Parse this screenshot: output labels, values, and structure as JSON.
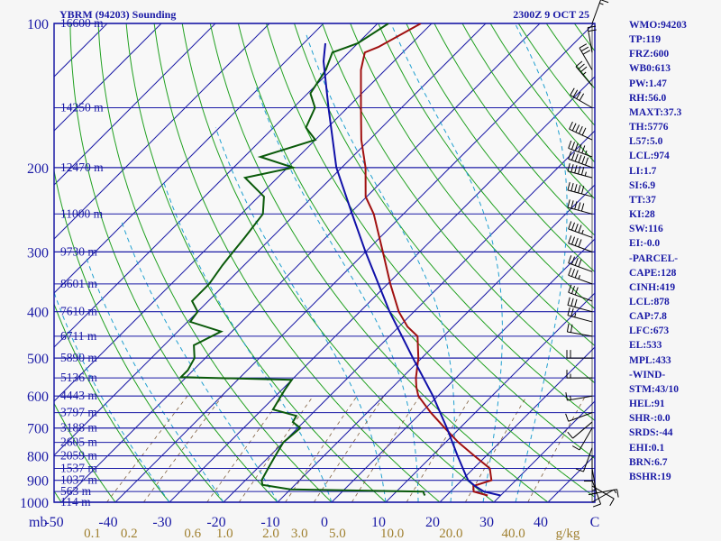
{
  "header": {
    "station": "YBRM (94203) Sounding",
    "time": "2300Z  9 OCT 25"
  },
  "indices": [
    "WMO:94203",
    "TP:119",
    "FRZ:600",
    "WB0:613",
    "PW:1.47",
    "RH:56.0",
    "MAXT:37.3",
    "TH:5776",
    "L57:5.0",
    "LCL:974",
    "LI:1.7",
    "SI:6.9",
    "TT:37",
    "KI:28",
    "SW:116",
    "EI:-0.0",
    "-PARCEL-",
    "CAPE:128",
    "CINH:419",
    "LCL:878",
    "CAP:7.8",
    "LFC:673",
    "EL:533",
    "MPL:433",
    "-WIND-",
    "STM:43/10",
    "HEL:91",
    "SHR-:0.0",
    "SRDS:-44",
    "EHI:0.1",
    "BRN:6.7",
    "BSHR:19"
  ],
  "chart_data": {
    "type": "line",
    "chart_kind": "skew-T log-P sounding",
    "y_axis": {
      "label": "mb",
      "scale": "log",
      "range": [
        1000,
        100
      ],
      "ticks": [
        100,
        200,
        300,
        400,
        500,
        600,
        700,
        800,
        900,
        1000
      ]
    },
    "x_axis": {
      "label": "",
      "range": [
        -50,
        50
      ],
      "ticks": [
        -50,
        -40,
        -30,
        -20,
        -10,
        0,
        10,
        20,
        30,
        40,
        50
      ],
      "tick_labels": [
        "-50",
        "-40",
        "-30",
        "-20",
        "-10",
        "0",
        "10",
        "20",
        "30",
        "40",
        "C"
      ],
      "unit": "C"
    },
    "mixing_ratio_ticks": {
      "values": [
        0.1,
        0.2,
        0.6,
        1.0,
        2.0,
        3.0,
        5.0,
        10.0,
        20.0,
        40.0
      ],
      "labels": [
        "0.1",
        "0.2",
        "0.6",
        "1.0",
        "2.0",
        "3.0",
        "5.0",
        "10.0",
        "20.0",
        "40.0"
      ],
      "unit": "g/kg"
    },
    "height_labels": [
      {
        "p": 100,
        "label": "16600 m"
      },
      {
        "p": 150,
        "label": "14250 m"
      },
      {
        "p": 200,
        "label": "12470 m"
      },
      {
        "p": 250,
        "label": "11000 m"
      },
      {
        "p": 300,
        "label": "9730 m"
      },
      {
        "p": 350,
        "label": "8601 m"
      },
      {
        "p": 400,
        "label": "7610 m"
      },
      {
        "p": 450,
        "label": "6711 m"
      },
      {
        "p": 500,
        "label": "5890 m"
      },
      {
        "p": 550,
        "label": "5136 m"
      },
      {
        "p": 600,
        "label": "4443 m"
      },
      {
        "p": 650,
        "label": "3797 m"
      },
      {
        "p": 700,
        "label": "3188 m"
      },
      {
        "p": 750,
        "label": "2605 m"
      },
      {
        "p": 800,
        "label": "2059 m"
      },
      {
        "p": 850,
        "label": "1537 m"
      },
      {
        "p": 900,
        "label": "1037 m"
      },
      {
        "p": 950,
        "label": "563 m"
      },
      {
        "p": 1000,
        "label": "114 m"
      }
    ],
    "series": [
      {
        "color": "#a01010",
        "points": [
          {
            "p": 968,
            "t": 27.6
          },
          {
            "p": 950,
            "t": 24.3
          },
          {
            "p": 925,
            "t": 23.2
          },
          {
            "p": 900,
            "t": 25.5
          },
          {
            "p": 850,
            "t": 23.0
          },
          {
            "p": 800,
            "t": 17.8
          },
          {
            "p": 750,
            "t": 12.4
          },
          {
            "p": 700,
            "t": 7.2
          },
          {
            "p": 650,
            "t": 1.8
          },
          {
            "p": 600,
            "t": -3.6
          },
          {
            "p": 575,
            "t": -5.6
          },
          {
            "p": 550,
            "t": -7.4
          },
          {
            "p": 500,
            "t": -10.6
          },
          {
            "p": 450,
            "t": -14.8
          },
          {
            "p": 430,
            "t": -18.4
          },
          {
            "p": 400,
            "t": -22.8
          },
          {
            "p": 350,
            "t": -29.5
          },
          {
            "p": 300,
            "t": -36.8
          },
          {
            "p": 250,
            "t": -45.5
          },
          {
            "p": 230,
            "t": -50.2
          },
          {
            "p": 200,
            "t": -55.6
          },
          {
            "p": 175,
            "t": -61.5
          },
          {
            "p": 150,
            "t": -67.5
          },
          {
            "p": 125,
            "t": -74.5
          },
          {
            "p": 115,
            "t": -77.0
          },
          {
            "p": 112,
            "t": -75.5
          },
          {
            "p": 100,
            "t": -72.0
          }
        ]
      },
      {
        "color": "#0a5a0a",
        "points": [
          {
            "p": 968,
            "t": 16.0
          },
          {
            "p": 960,
            "t": 15.5
          },
          {
            "p": 950,
            "t": 15.0
          },
          {
            "p": 940,
            "t": -10.0
          },
          {
            "p": 920,
            "t": -16.0
          },
          {
            "p": 900,
            "t": -17.0
          },
          {
            "p": 850,
            "t": -18.0
          },
          {
            "p": 800,
            "t": -19.0
          },
          {
            "p": 750,
            "t": -20.0
          },
          {
            "p": 700,
            "t": -19.5
          },
          {
            "p": 680,
            "t": -22.0
          },
          {
            "p": 660,
            "t": -22.5
          },
          {
            "p": 640,
            "t": -28.0
          },
          {
            "p": 600,
            "t": -29.0
          },
          {
            "p": 580,
            "t": -29.5
          },
          {
            "p": 555,
            "t": -30.0
          },
          {
            "p": 548,
            "t": -51.0
          },
          {
            "p": 530,
            "t": -51.0
          },
          {
            "p": 500,
            "t": -52.0
          },
          {
            "p": 470,
            "t": -54.5
          },
          {
            "p": 440,
            "t": -52.0
          },
          {
            "p": 420,
            "t": -59.5
          },
          {
            "p": 400,
            "t": -60.0
          },
          {
            "p": 380,
            "t": -63.0
          },
          {
            "p": 350,
            "t": -63.0
          },
          {
            "p": 320,
            "t": -64.0
          },
          {
            "p": 300,
            "t": -64.5
          },
          {
            "p": 280,
            "t": -65.0
          },
          {
            "p": 250,
            "t": -66.0
          },
          {
            "p": 230,
            "t": -69.0
          },
          {
            "p": 210,
            "t": -76.0
          },
          {
            "p": 200,
            "t": -69.0
          },
          {
            "p": 190,
            "t": -77.0
          },
          {
            "p": 175,
            "t": -70.0
          },
          {
            "p": 165,
            "t": -74.0
          },
          {
            "p": 150,
            "t": -76.0
          },
          {
            "p": 140,
            "t": -79.5
          },
          {
            "p": 125,
            "t": -81.0
          },
          {
            "p": 115,
            "t": -83.0
          },
          {
            "p": 110,
            "t": -80.0
          },
          {
            "p": 100,
            "t": -78.0
          }
        ]
      },
      {
        "color": "#1010a8",
        "points": [
          {
            "p": 968,
            "t": 30.0
          },
          {
            "p": 950,
            "t": 26.2
          },
          {
            "p": 925,
            "t": 23.5
          },
          {
            "p": 900,
            "t": 21.2
          },
          {
            "p": 878,
            "t": 19.8
          },
          {
            "p": 800,
            "t": 14.7
          },
          {
            "p": 700,
            "t": 7.6
          },
          {
            "p": 600,
            "t": -0.9
          },
          {
            "p": 500,
            "t": -11.6
          },
          {
            "p": 400,
            "t": -24.5
          },
          {
            "p": 300,
            "t": -40.0
          },
          {
            "p": 250,
            "t": -49.5
          },
          {
            "p": 200,
            "t": -61.0
          },
          {
            "p": 150,
            "t": -73.5
          },
          {
            "p": 120,
            "t": -83.0
          },
          {
            "p": 110,
            "t": -86.0
          }
        ]
      }
    ],
    "wind_barbs": [
      {
        "p": 1000,
        "dir": 60,
        "spd": 5
      },
      {
        "p": 960,
        "dir": 80,
        "spd": 10
      },
      {
        "p": 925,
        "dir": 120,
        "spd": 10
      },
      {
        "p": 900,
        "dir": 160,
        "spd": 10
      },
      {
        "p": 850,
        "dir": 170,
        "spd": 15
      },
      {
        "p": 800,
        "dir": 180,
        "spd": 10
      },
      {
        "p": 770,
        "dir": 200,
        "spd": 10
      },
      {
        "p": 700,
        "dir": 210,
        "spd": 10
      },
      {
        "p": 680,
        "dir": 230,
        "spd": 10
      },
      {
        "p": 650,
        "dir": 250,
        "spd": 10
      },
      {
        "p": 600,
        "dir": 260,
        "spd": 15
      },
      {
        "p": 550,
        "dir": 270,
        "spd": 15
      },
      {
        "p": 500,
        "dir": 270,
        "spd": 20
      },
      {
        "p": 450,
        "dir": 280,
        "spd": 20
      },
      {
        "p": 420,
        "dir": 285,
        "spd": 25
      },
      {
        "p": 400,
        "dir": 285,
        "spd": 30
      },
      {
        "p": 380,
        "dir": 290,
        "spd": 30
      },
      {
        "p": 350,
        "dir": 290,
        "spd": 35
      },
      {
        "p": 330,
        "dir": 290,
        "spd": 40
      },
      {
        "p": 300,
        "dir": 290,
        "spd": 40
      },
      {
        "p": 280,
        "dir": 290,
        "spd": 45
      },
      {
        "p": 250,
        "dir": 285,
        "spd": 50
      },
      {
        "p": 230,
        "dir": 285,
        "spd": 50
      },
      {
        "p": 210,
        "dir": 285,
        "spd": 55
      },
      {
        "p": 200,
        "dir": 290,
        "spd": 60
      },
      {
        "p": 190,
        "dir": 290,
        "spd": 55
      },
      {
        "p": 175,
        "dir": 295,
        "spd": 50
      },
      {
        "p": 150,
        "dir": 300,
        "spd": 40
      },
      {
        "p": 135,
        "dir": 320,
        "spd": 35
      },
      {
        "p": 125,
        "dir": 330,
        "spd": 30
      },
      {
        "p": 115,
        "dir": 350,
        "spd": 20
      },
      {
        "p": 100,
        "dir": 20,
        "spd": 15
      }
    ],
    "grid": true,
    "colors": {
      "isobars": "#1a1aa6",
      "isotherms": "#1a1aa6",
      "dry_adiabats": "#20a020",
      "moist_adiabats": "#20a0d0",
      "mixing_ratio_lines": "#806040",
      "mixing_ratio_tick_labels": "#a08030",
      "text": "#1a1aa6"
    }
  }
}
